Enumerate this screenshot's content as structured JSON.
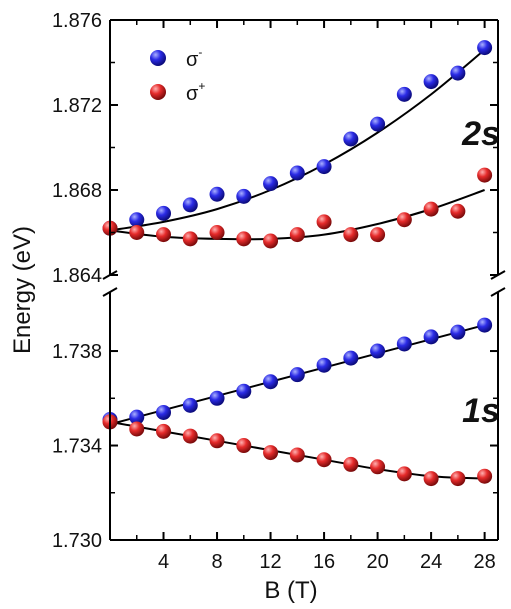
{
  "chart_data": {
    "type": "scatter",
    "xlabel": "B (T)",
    "ylabel": "Energy (eV)",
    "x_ticks": [
      "4",
      "8",
      "12",
      "16",
      "20",
      "24",
      "28"
    ],
    "xlim": [
      0,
      29
    ],
    "axis_break": true,
    "legend_position": "top-left",
    "panels": [
      {
        "label": "2s",
        "ylim": [
          1.864,
          1.876
        ],
        "y_ticks": [
          "1.864",
          "1.868",
          "1.872",
          "1.876"
        ],
        "series": [
          {
            "name": "σ-",
            "sup": "-",
            "color": "#2222dd",
            "x": [
              0,
              2,
              4,
              6,
              8,
              10,
              12,
              14,
              16,
              18,
              20,
              22,
              24,
              26,
              28
            ],
            "y": [
              1.8662,
              1.8666,
              1.8669,
              1.8673,
              1.8678,
              1.8677,
              1.8683,
              1.8688,
              1.8691,
              1.8704,
              1.8711,
              1.8725,
              1.8731,
              1.8735,
              1.8747
            ],
            "fit": {
              "x": [
                0,
                4,
                8,
                12,
                16,
                20,
                24,
                28
              ],
              "y": [
                1.8661,
                1.8665,
                1.8671,
                1.868,
                1.8692,
                1.8707,
                1.8725,
                1.8746
              ]
            }
          },
          {
            "name": "σ+",
            "sup": "+",
            "color": "#dd2222",
            "x": [
              0,
              2,
              4,
              6,
              8,
              10,
              12,
              14,
              16,
              18,
              20,
              22,
              24,
              26,
              28
            ],
            "y": [
              1.8662,
              1.866,
              1.8659,
              1.8657,
              1.866,
              1.8657,
              1.8656,
              1.8659,
              1.8665,
              1.8659,
              1.8659,
              1.8666,
              1.8671,
              1.867,
              1.8687
            ],
            "fit": {
              "x": [
                0,
                4,
                8,
                12,
                16,
                20,
                24,
                28
              ],
              "y": [
                1.8661,
                1.8658,
                1.8657,
                1.8657,
                1.8659,
                1.8664,
                1.8671,
                1.868
              ]
            }
          }
        ]
      },
      {
        "label": "1s",
        "ylim": [
          1.73,
          1.7405
        ],
        "y_ticks": [
          "1.730",
          "1.734",
          "1.738"
        ],
        "series": [
          {
            "name": "σ-",
            "color": "#2222dd",
            "x": [
              0,
              2,
              4,
              6,
              8,
              10,
              12,
              14,
              16,
              18,
              20,
              22,
              24,
              26,
              28
            ],
            "y": [
              1.7351,
              1.7352,
              1.7354,
              1.7357,
              1.736,
              1.7363,
              1.7367,
              1.737,
              1.7374,
              1.7377,
              1.738,
              1.7383,
              1.7386,
              1.7388,
              1.7391
            ],
            "fit": {
              "x": [
                0,
                28
              ],
              "y": [
                1.7349,
                1.7391
              ]
            }
          },
          {
            "name": "σ+",
            "color": "#dd2222",
            "x": [
              0,
              2,
              4,
              6,
              8,
              10,
              12,
              14,
              16,
              18,
              20,
              22,
              24,
              26,
              28
            ],
            "y": [
              1.735,
              1.7347,
              1.7346,
              1.7344,
              1.7342,
              1.734,
              1.7337,
              1.7336,
              1.7334,
              1.7332,
              1.7331,
              1.7328,
              1.7326,
              1.7326,
              1.7327
            ],
            "fit": {
              "x": [
                0,
                4,
                8,
                12,
                16,
                20,
                24,
                28
              ],
              "y": [
                1.735,
                1.7346,
                1.7342,
                1.7338,
                1.7334,
                1.733,
                1.7327,
                1.7326
              ]
            }
          }
        ]
      }
    ]
  }
}
